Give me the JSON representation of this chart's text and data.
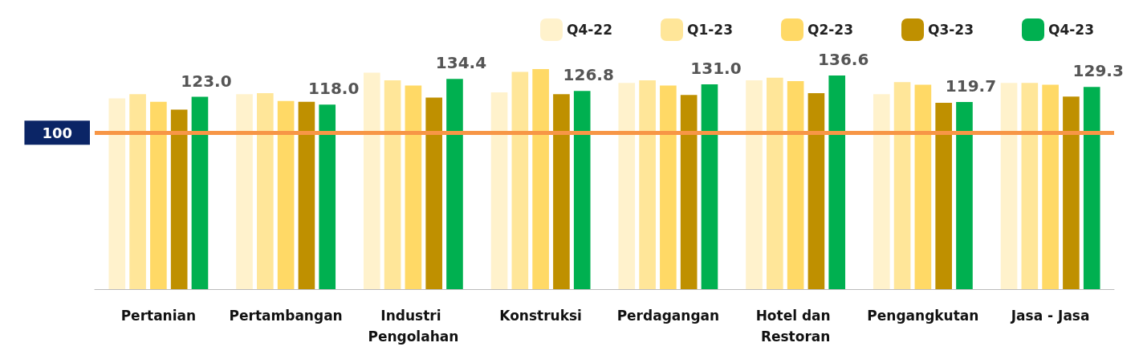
{
  "chart_data": {
    "type": "bar",
    "categories": [
      "Pertanian",
      "Pertambangan",
      "Industri Pengolahan",
      "Konstruksi",
      "Perdagangan",
      "Hotel dan Restoran",
      "Pengangkutan",
      "Jasa - Jasa"
    ],
    "series": [
      {
        "name": "Q4-22",
        "color": "#fff2cc",
        "values": [
          122,
          124.7,
          138.5,
          125.8,
          131.9,
          133.5,
          124.7,
          131.9
        ]
      },
      {
        "name": "Q1-23",
        "color": "#ffe699",
        "values": [
          124.7,
          125.3,
          133.5,
          139,
          133.5,
          135.2,
          132.4,
          131.9
        ]
      },
      {
        "name": "Q2-23",
        "color": "#ffd966",
        "values": [
          119.8,
          120.3,
          130.2,
          140.7,
          130.2,
          133,
          130.8,
          130.8
        ]
      },
      {
        "name": "Q3-23",
        "color": "#bf9000",
        "values": [
          114.8,
          119.8,
          122.5,
          124.7,
          124.2,
          125.3,
          119.2,
          123.1
        ]
      },
      {
        "name": "Q4-23",
        "color": "#00b050",
        "values": [
          123.0,
          118.0,
          134.4,
          126.8,
          131.0,
          136.6,
          119.7,
          129.3
        ],
        "value_labels": [
          "123.0",
          "118.0",
          "134.4",
          "126.8",
          "131.0",
          "136.6",
          "119.7",
          "129.3"
        ]
      }
    ],
    "tick_labels": "x",
    "legend": "top right",
    "ref_lines": [
      {
        "axis": "y",
        "value": 100,
        "label": "100",
        "color": "#f79646"
      }
    ]
  }
}
